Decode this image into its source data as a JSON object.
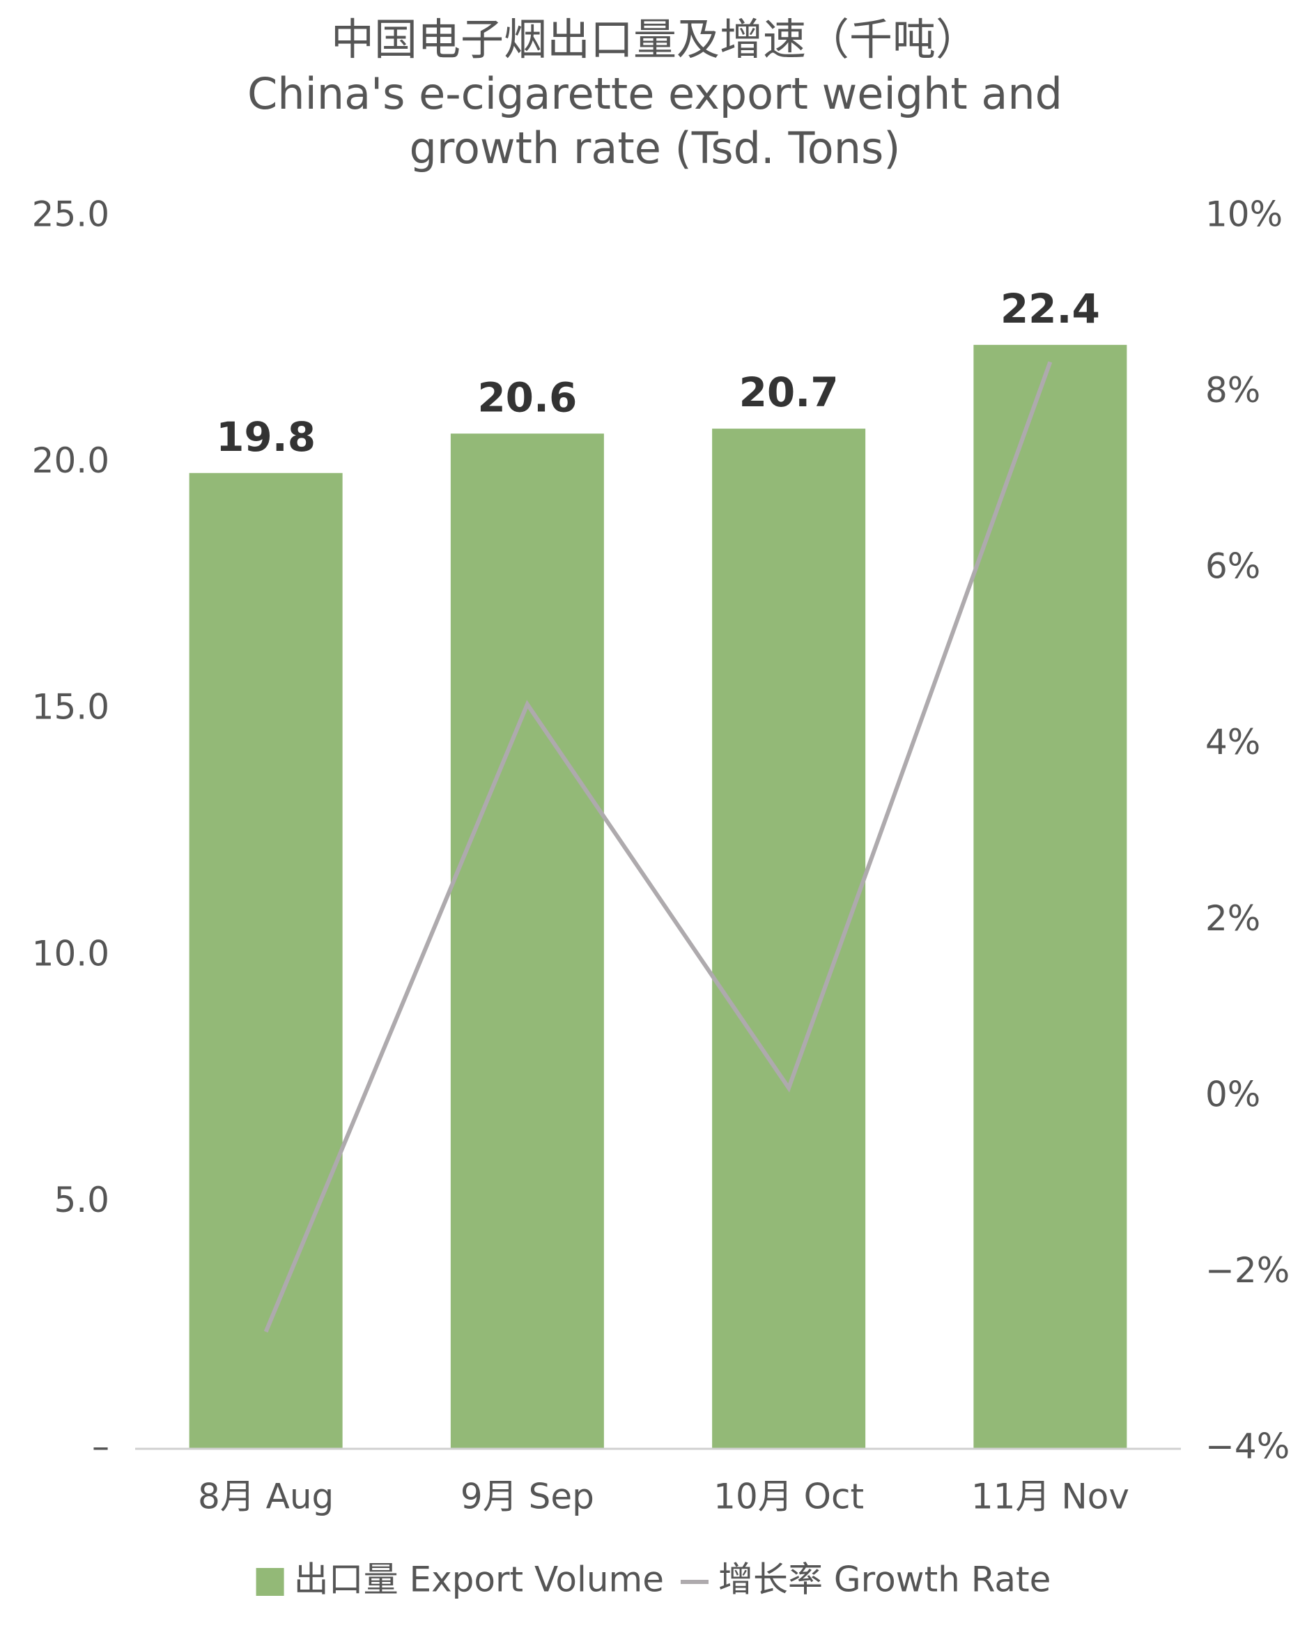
{
  "chart_data": {
    "type": "bar",
    "title": "中国电子烟出口量及增速（千吨）",
    "subtitle": "China's e-cigarette export weight and growth rate (Tsd. Tons)",
    "categories": [
      "8月 Aug",
      "9月 Sep",
      "10月 Oct",
      "11月 Nov"
    ],
    "series": [
      {
        "name": "出口量 Export Volume",
        "type": "bar",
        "color": "#93b977",
        "values": [
          19.8,
          20.6,
          20.7,
          22.4
        ]
      },
      {
        "name": "增长率 Growth Rate",
        "type": "line",
        "axis": "y2",
        "color": "#aeaaad",
        "values": [
          -2.67,
          4.46,
          0.1,
          8.35
        ]
      }
    ],
    "ylim": [
      0,
      25
    ],
    "yticks": [
      {
        "value": 0,
        "label": "–"
      },
      {
        "value": 5,
        "label": "5.0"
      },
      {
        "value": 10,
        "label": "10.0"
      },
      {
        "value": 15,
        "label": "15.0"
      },
      {
        "value": 20,
        "label": "20.0"
      },
      {
        "value": 25,
        "label": "25.0"
      }
    ],
    "y2lim": [
      -4,
      10
    ],
    "y2ticks": [
      {
        "value": -4,
        "label": "−4%"
      },
      {
        "value": -2,
        "label": "−2%"
      },
      {
        "value": 0,
        "label": "0%"
      },
      {
        "value": 2,
        "label": "2%"
      },
      {
        "value": 4,
        "label": "4%"
      },
      {
        "value": 6,
        "label": "6%"
      },
      {
        "value": 8,
        "label": "8%"
      },
      {
        "value": 10,
        "label": "10%"
      }
    ],
    "legend": "bottom"
  }
}
